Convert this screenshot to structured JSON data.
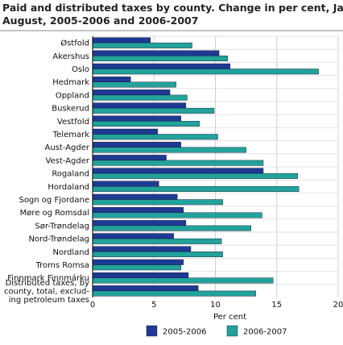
{
  "chart_data": {
    "type": "bar",
    "orientation": "horizontal",
    "title_lines": [
      "Paid and distributed taxes by county. Change in per cent, January-",
      "August, 2005-2006 and 2006-2007"
    ],
    "categories": [
      [
        "Østfold"
      ],
      [
        "Akershus"
      ],
      [
        "Oslo"
      ],
      [
        "Hedmark"
      ],
      [
        "Oppland"
      ],
      [
        "Buskerud"
      ],
      [
        "Vestfold"
      ],
      [
        "Telemark"
      ],
      [
        "Aust-Agder"
      ],
      [
        "Vest-Agder"
      ],
      [
        "Rogaland"
      ],
      [
        "Hordaland"
      ],
      [
        "Sogn og Fjordane"
      ],
      [
        "Møre og Romsdal"
      ],
      [
        "Sør-Trøndelag"
      ],
      [
        "Nord-Trøndelag"
      ],
      [
        "Nordland"
      ],
      [
        "Troms Romsa"
      ],
      [
        "Finnmark Finnmárku"
      ],
      [
        "Distributed taxes, by",
        "county, total, exclud-",
        "ing petroleum taxes"
      ]
    ],
    "series": [
      {
        "name": "2005-2006",
        "color": "#1f3a93",
        "values": [
          4.7,
          10.3,
          11.2,
          3.1,
          6.3,
          7.6,
          7.2,
          5.3,
          7.2,
          6.0,
          13.9,
          5.4,
          6.9,
          7.4,
          7.6,
          6.6,
          8.0,
          7.4,
          7.8,
          8.6
        ]
      },
      {
        "name": "2006-2007",
        "color": "#22a29a",
        "values": [
          8.1,
          11.0,
          18.4,
          6.8,
          7.7,
          9.9,
          8.7,
          10.2,
          12.5,
          13.9,
          16.7,
          16.8,
          10.6,
          13.8,
          12.9,
          10.5,
          10.6,
          7.2,
          14.7,
          13.3
        ]
      }
    ],
    "xlabel": "Per cent",
    "xlim": [
      0,
      20
    ],
    "xticks": [
      0,
      5,
      10,
      15,
      20
    ],
    "grid": "vertical",
    "legend_position": "bottom"
  }
}
